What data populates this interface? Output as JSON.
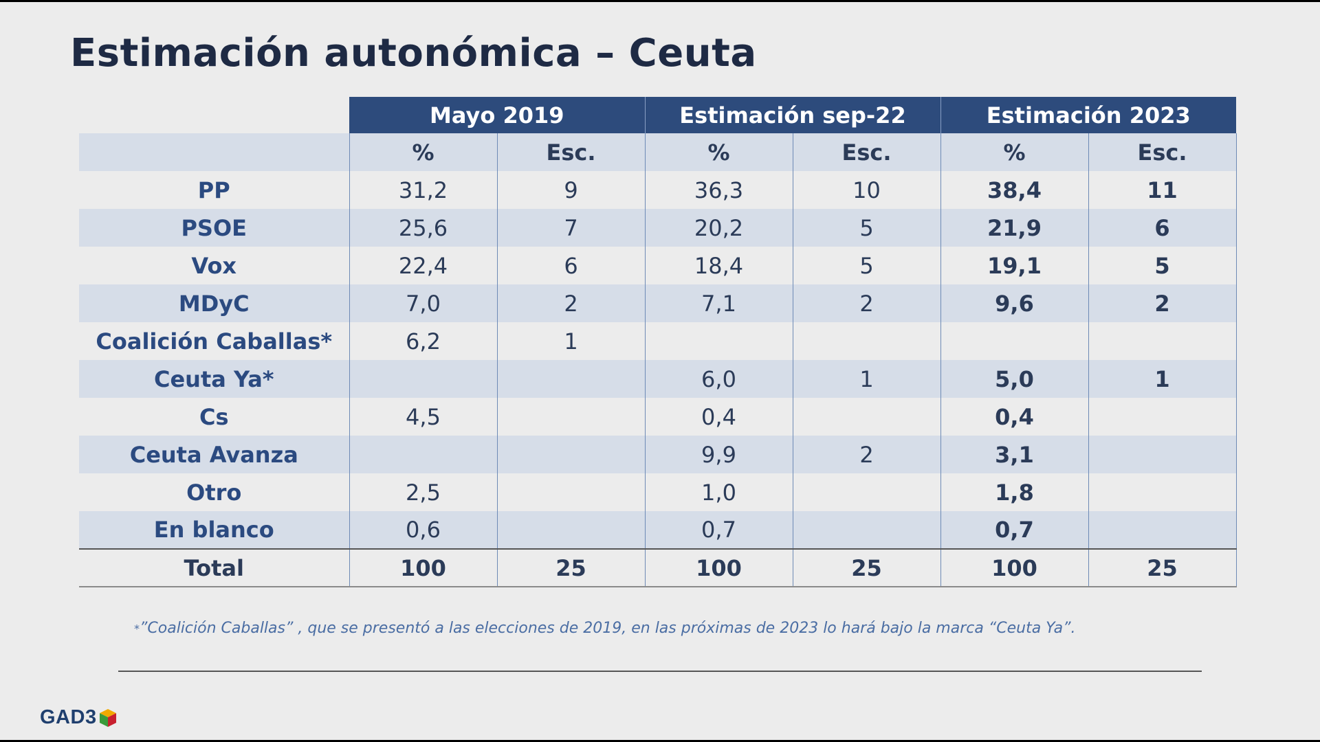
{
  "title": "Estimación autonómica – Ceuta",
  "table": {
    "groups": [
      "Mayo 2019",
      "Estimación sep-22",
      "Estimación 2023"
    ],
    "subheaders": [
      "%",
      "Esc.",
      "%",
      "Esc.",
      "%",
      "Esc."
    ],
    "rows": [
      {
        "party": "PP",
        "values": [
          "31,2",
          "9",
          "36,3",
          "10",
          "38,4",
          "11"
        ]
      },
      {
        "party": "PSOE",
        "values": [
          "25,6",
          "7",
          "20,2",
          "5",
          "21,9",
          "6"
        ]
      },
      {
        "party": "Vox",
        "values": [
          "22,4",
          "6",
          "18,4",
          "5",
          "19,1",
          "5"
        ]
      },
      {
        "party": "MDyC",
        "values": [
          "7,0",
          "2",
          "7,1",
          "2",
          "9,6",
          "2"
        ]
      },
      {
        "party": "Coalición Caballas*",
        "values": [
          "6,2",
          "1",
          "",
          "",
          "",
          ""
        ]
      },
      {
        "party": "Ceuta Ya*",
        "values": [
          "",
          "",
          "6,0",
          "1",
          "5,0",
          "1"
        ]
      },
      {
        "party": "Cs",
        "values": [
          "4,5",
          "",
          "0,4",
          "",
          "0,4",
          ""
        ]
      },
      {
        "party": "Ceuta Avanza",
        "values": [
          "",
          "",
          "9,9",
          "2",
          "3,1",
          ""
        ]
      },
      {
        "party": "Otro",
        "values": [
          "2,5",
          "",
          "1,0",
          "",
          "1,8",
          ""
        ]
      },
      {
        "party": "En blanco",
        "values": [
          "0,6",
          "",
          "0,7",
          "",
          "0,7",
          ""
        ]
      }
    ],
    "total": {
      "label": "Total",
      "values": [
        "100",
        "25",
        "100",
        "25",
        "100",
        "25"
      ]
    }
  },
  "footnote": {
    "marker": "*",
    "text": "”Coalición Caballas” , que se presentó a las elecciones de 2019, en las próximas de 2023 lo hará bajo la marca “Ceuta Ya”."
  },
  "logo": {
    "text": "GAD3",
    "icon": "cube-icon"
  },
  "colors": {
    "header_bg": "#2d4b7c",
    "band_bg": "#d6dde8",
    "party_text": "#2b4a80",
    "footnote_text": "#4a6da3",
    "slide_bg": "#ececec"
  }
}
